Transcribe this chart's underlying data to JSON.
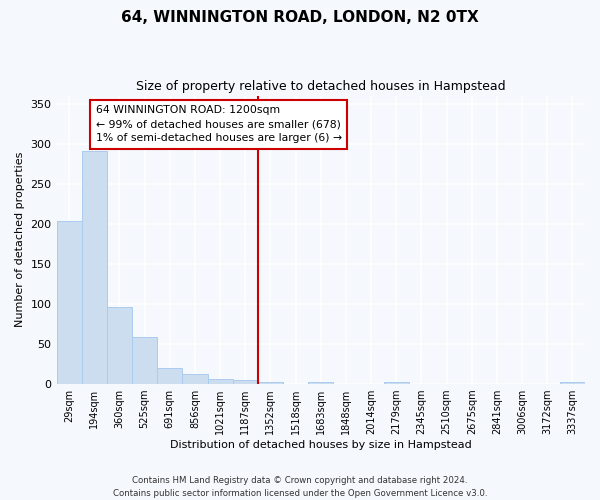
{
  "title": "64, WINNINGTON ROAD, LONDON, N2 0TX",
  "subtitle": "Size of property relative to detached houses in Hampstead",
  "xlabel": "Distribution of detached houses by size in Hampstead",
  "ylabel": "Number of detached properties",
  "bar_color": "#ccddf0",
  "bar_edge_color": "#aaccee",
  "background_color": "#f5f8fd",
  "plot_bg_color": "#f5f8fd",
  "grid_color": "#ffffff",
  "categories": [
    "29sqm",
    "194sqm",
    "360sqm",
    "525sqm",
    "691sqm",
    "856sqm",
    "1021sqm",
    "1187sqm",
    "1352sqm",
    "1518sqm",
    "1683sqm",
    "1848sqm",
    "2014sqm",
    "2179sqm",
    "2345sqm",
    "2510sqm",
    "2675sqm",
    "2841sqm",
    "3006sqm",
    "3172sqm",
    "3337sqm"
  ],
  "values": [
    203,
    291,
    96,
    58,
    20,
    12,
    6,
    5,
    3,
    0,
    2,
    0,
    0,
    2,
    0,
    0,
    0,
    0,
    0,
    0,
    2
  ],
  "property_line_x": 7,
  "property_label": "64 WINNINGTON ROAD: 1200sqm",
  "annotation_line1": "← 99% of detached houses are smaller (678)",
  "annotation_line2": "1% of semi-detached houses are larger (6) →",
  "annotation_box_color": "#ffffff",
  "annotation_border_color": "#cc0000",
  "vline_color": "#cc0000",
  "ylim": [
    0,
    360
  ],
  "yticks": [
    0,
    50,
    100,
    150,
    200,
    250,
    300,
    350
  ],
  "footer1": "Contains HM Land Registry data © Crown copyright and database right 2024.",
  "footer2": "Contains public sector information licensed under the Open Government Licence v3.0."
}
